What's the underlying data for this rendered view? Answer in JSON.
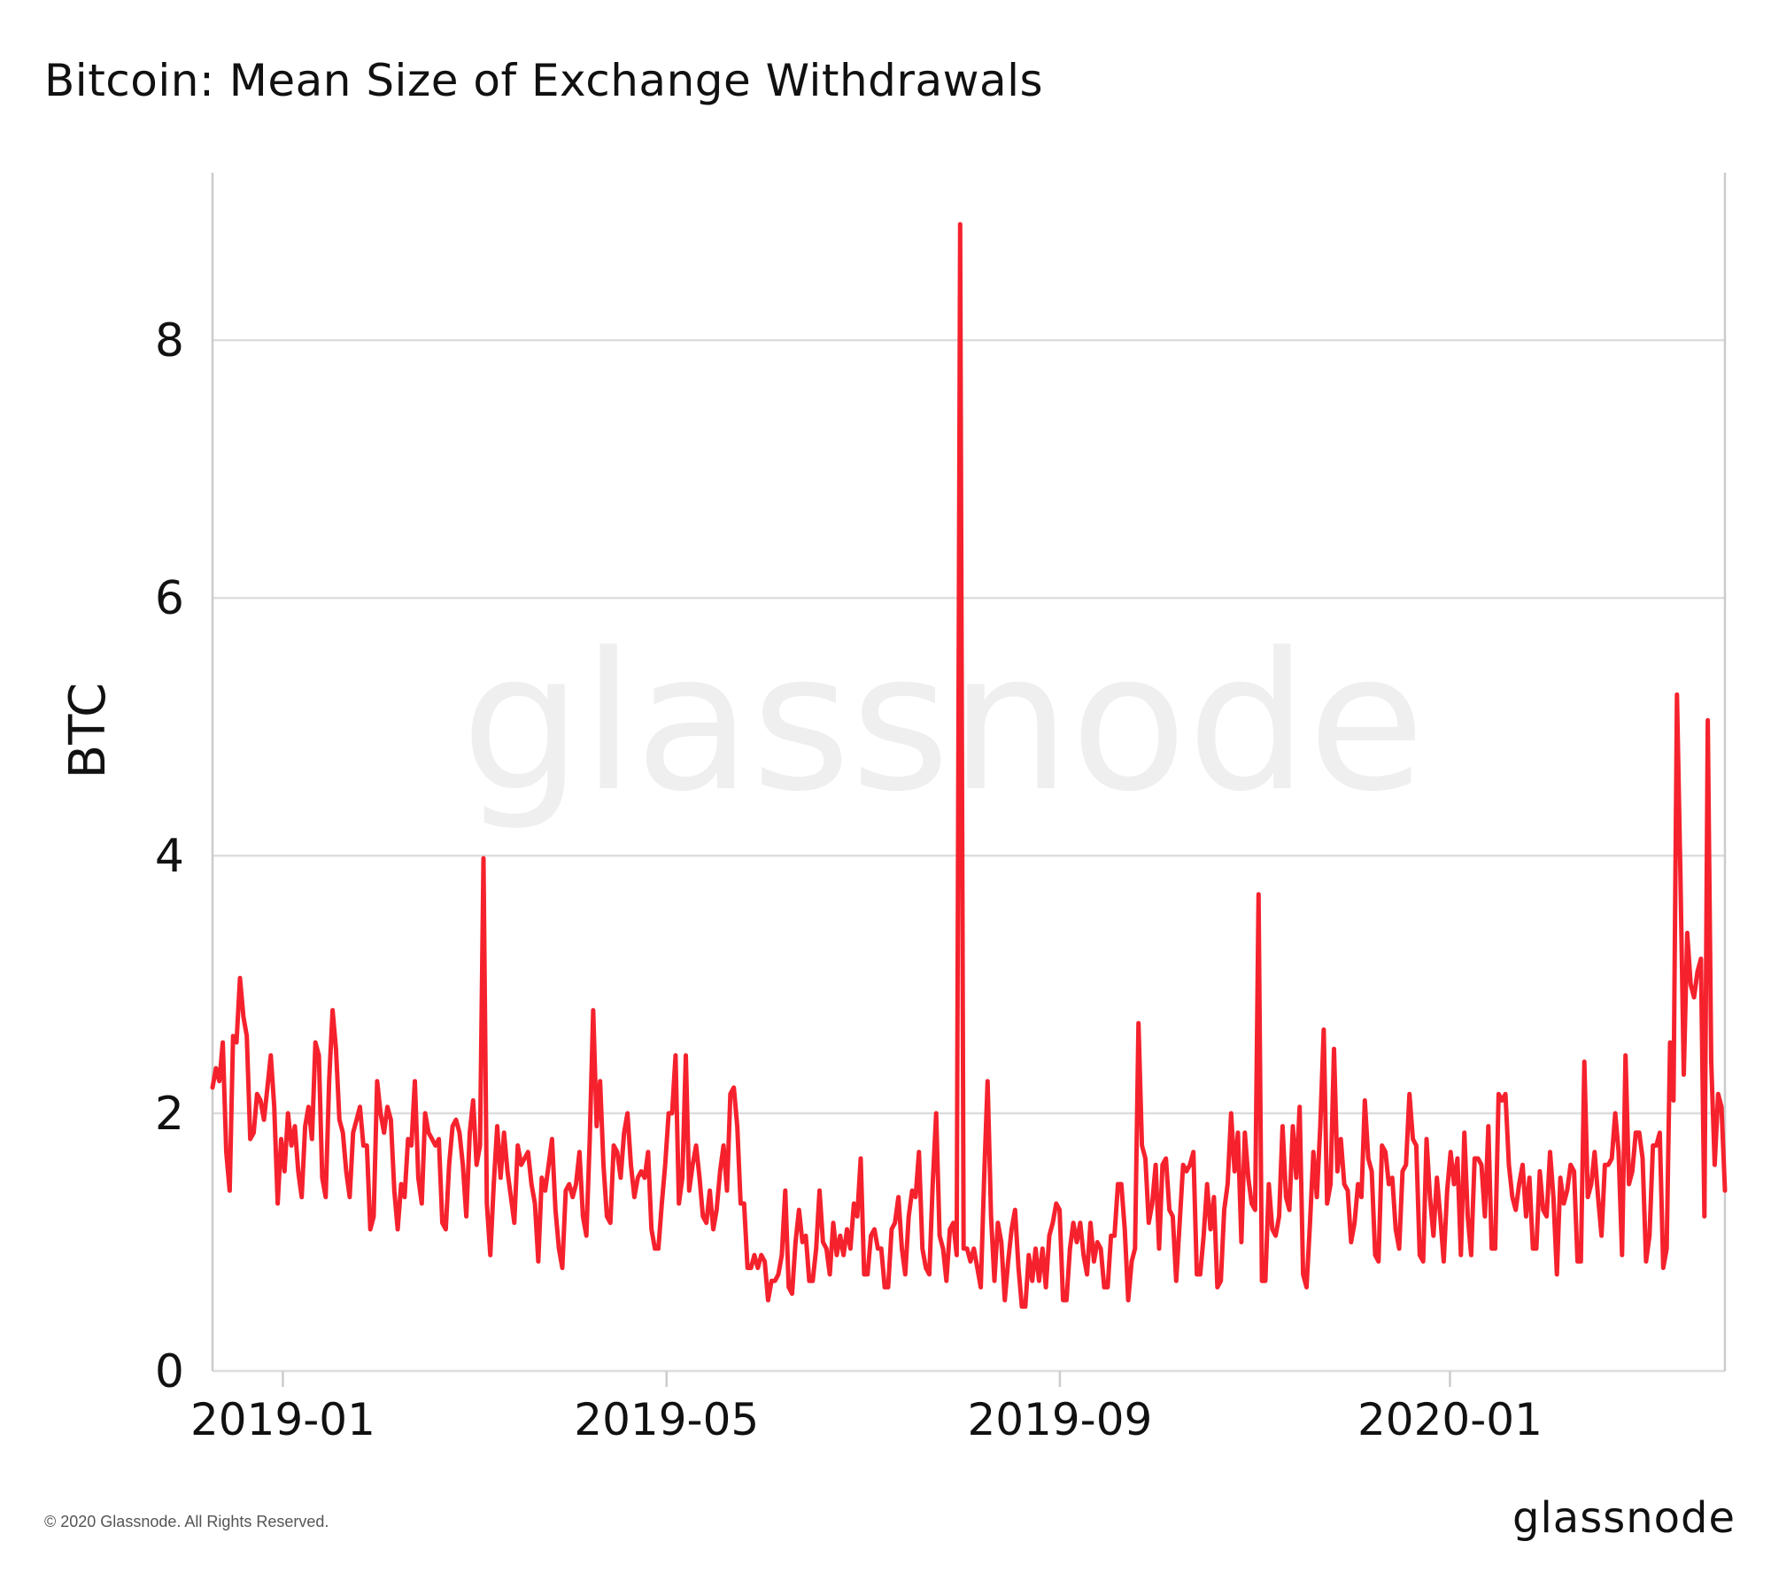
{
  "title": "Bitcoin: Mean Size of Exchange Withdrawals",
  "watermark": "glassnode",
  "footer": {
    "copyright": "© 2020 Glassnode. All Rights Reserved.",
    "brand": "glassnode"
  },
  "colors": {
    "line": "#f5222d",
    "grid": "#dddddd",
    "axis": "#cccccc",
    "text": "#111111",
    "watermark": "#eeeeee"
  },
  "chart_data": {
    "type": "line",
    "title": "Bitcoin: Mean Size of Exchange Withdrawals",
    "xlabel": "",
    "ylabel": "BTC",
    "ylim": [
      0,
      9.3
    ],
    "xlim": [
      "2018-12-10",
      "2020-03-27"
    ],
    "yticks": [
      0,
      2,
      4,
      6,
      8
    ],
    "xticks": [
      "2019-01",
      "2019-05",
      "2019-09",
      "2020-01"
    ],
    "grid": "horizontal",
    "series": [
      {
        "values_sampled_daily_from": "2018-12-10",
        "values": [
          2.2,
          2.35,
          2.25,
          2.55,
          1.7,
          1.4,
          2.6,
          2.55,
          3.05,
          2.75,
          2.6,
          1.8,
          1.85,
          2.15,
          2.1,
          1.95,
          2.2,
          2.45,
          2.05,
          1.3,
          1.8,
          1.55,
          2.0,
          1.75,
          1.9,
          1.55,
          1.35,
          1.9,
          2.05,
          1.8,
          2.55,
          2.45,
          1.5,
          1.35,
          2.25,
          2.8,
          2.5,
          1.95,
          1.85,
          1.55,
          1.35,
          1.85,
          1.95,
          2.05,
          1.75,
          1.75,
          1.1,
          1.2,
          2.25,
          2.0,
          1.85,
          2.05,
          1.95,
          1.4,
          1.1,
          1.45,
          1.35,
          1.8,
          1.75,
          2.25,
          1.5,
          1.3,
          2.0,
          1.85,
          1.8,
          1.75,
          1.8,
          1.15,
          1.1,
          1.6,
          1.9,
          1.95,
          1.85,
          1.6,
          1.2,
          1.85,
          2.1,
          1.6,
          1.75,
          3.98,
          1.3,
          0.9,
          1.45,
          1.9,
          1.5,
          1.85,
          1.55,
          1.35,
          1.15,
          1.75,
          1.6,
          1.65,
          1.7,
          1.45,
          1.3,
          0.85,
          1.5,
          1.4,
          1.6,
          1.8,
          1.25,
          0.95,
          0.8,
          1.4,
          1.45,
          1.35,
          1.45,
          1.7,
          1.2,
          1.05,
          1.8,
          2.8,
          1.9,
          2.25,
          1.6,
          1.2,
          1.15,
          1.75,
          1.7,
          1.5,
          1.85,
          2.0,
          1.6,
          1.35,
          1.5,
          1.55,
          1.5,
          1.7,
          1.1,
          0.95,
          0.95,
          1.3,
          1.6,
          2.0,
          2.0,
          2.45,
          1.3,
          1.5,
          2.45,
          1.4,
          1.6,
          1.75,
          1.5,
          1.2,
          1.15,
          1.4,
          1.1,
          1.25,
          1.55,
          1.75,
          1.4,
          2.15,
          2.2,
          1.9,
          1.3,
          1.3,
          0.8,
          0.8,
          0.9,
          0.8,
          0.9,
          0.85,
          0.55,
          0.7,
          0.7,
          0.75,
          0.9,
          1.4,
          0.65,
          0.6,
          1.0,
          1.25,
          1.0,
          1.05,
          0.7,
          0.7,
          0.95,
          1.4,
          1.0,
          0.95,
          0.75,
          1.15,
          0.9,
          1.05,
          0.9,
          1.1,
          0.95,
          1.3,
          1.2,
          1.65,
          0.75,
          0.75,
          1.05,
          1.1,
          0.95,
          0.95,
          0.65,
          0.65,
          1.1,
          1.15,
          1.35,
          0.95,
          0.75,
          1.2,
          1.4,
          1.35,
          1.7,
          0.95,
          0.8,
          0.75,
          1.45,
          2.0,
          1.05,
          0.95,
          0.7,
          1.1,
          1.15,
          0.9,
          8.9,
          0.95,
          0.95,
          0.85,
          0.95,
          0.8,
          0.65,
          1.5,
          2.25,
          1.2,
          0.7,
          1.15,
          1.0,
          0.55,
          0.85,
          1.1,
          1.25,
          0.8,
          0.5,
          0.5,
          0.9,
          0.7,
          0.95,
          0.7,
          0.95,
          0.65,
          1.05,
          1.15,
          1.3,
          1.25,
          0.55,
          0.55,
          0.95,
          1.15,
          1.0,
          1.15,
          0.9,
          0.75,
          1.15,
          0.85,
          1.0,
          0.95,
          0.65,
          0.65,
          1.05,
          1.05,
          1.45,
          1.45,
          1.1,
          0.55,
          0.85,
          0.95,
          2.7,
          1.75,
          1.65,
          1.15,
          1.3,
          1.6,
          0.95,
          1.6,
          1.65,
          1.25,
          1.2,
          0.7,
          1.15,
          1.6,
          1.55,
          1.6,
          1.7,
          0.75,
          0.75,
          1.05,
          1.45,
          1.1,
          1.35,
          0.65,
          0.7,
          1.25,
          1.45,
          2.0,
          1.55,
          1.85,
          1.0,
          1.85,
          1.5,
          1.3,
          1.25,
          3.7,
          0.7,
          0.7,
          1.45,
          1.1,
          1.05,
          1.2,
          1.9,
          1.35,
          1.25,
          1.9,
          1.5,
          2.05,
          0.75,
          0.65,
          1.15,
          1.7,
          1.35,
          1.9,
          2.65,
          1.3,
          1.45,
          2.5,
          1.55,
          1.8,
          1.45,
          1.4,
          1.0,
          1.15,
          1.45,
          1.35,
          2.1,
          1.65,
          1.55,
          0.9,
          0.85,
          1.75,
          1.7,
          1.45,
          1.5,
          1.1,
          0.95,
          1.55,
          1.6,
          2.15,
          1.8,
          1.75,
          0.9,
          0.85,
          1.8,
          1.35,
          1.05,
          1.5,
          1.2,
          0.85,
          1.4,
          1.7,
          1.45,
          1.65,
          0.9,
          1.85,
          1.2,
          0.9,
          1.65,
          1.65,
          1.6,
          1.2,
          1.9,
          0.95,
          0.95,
          2.15,
          2.1,
          2.15,
          1.6,
          1.35,
          1.25,
          1.45,
          1.6,
          1.2,
          1.5,
          0.95,
          0.95,
          1.55,
          1.25,
          1.2,
          1.7,
          1.35,
          0.75,
          1.5,
          1.3,
          1.4,
          1.6,
          1.55,
          0.85,
          0.85,
          2.4,
          1.35,
          1.45,
          1.7,
          1.35,
          1.05,
          1.6,
          1.6,
          1.65,
          2.0,
          1.7,
          0.9,
          2.45,
          1.45,
          1.55,
          1.85,
          1.85,
          1.65,
          0.85,
          1.05,
          1.75,
          1.75,
          1.85,
          0.8,
          0.95,
          2.55,
          2.1,
          5.25,
          3.85,
          2.3,
          3.4,
          3.0,
          2.9,
          3.1,
          3.2,
          1.2,
          5.05,
          2.4,
          1.6,
          2.15,
          2.05,
          1.4
        ]
      }
    ]
  }
}
